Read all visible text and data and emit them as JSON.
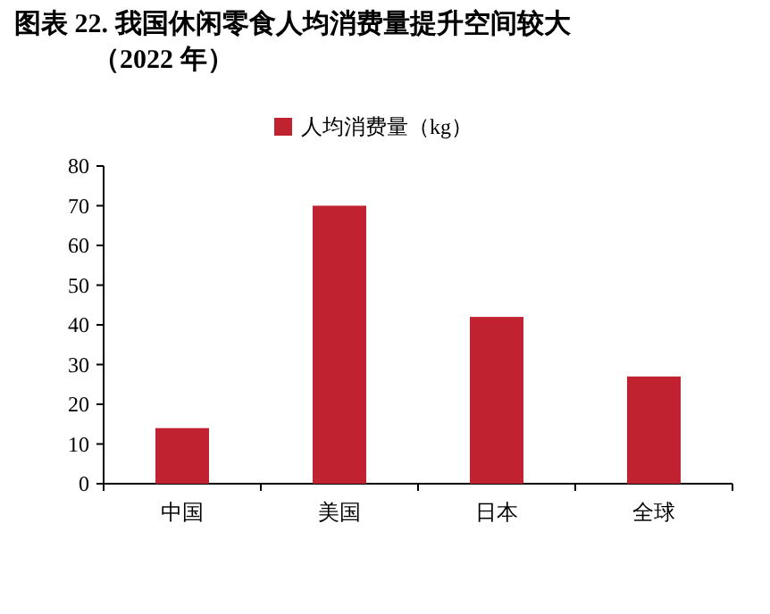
{
  "chart_data": {
    "type": "bar",
    "title": "图表 22. 我国休闲零食人均消费量提升空间较大（2022 年）",
    "categories": [
      "中国",
      "美国",
      "日本",
      "全球"
    ],
    "series": [
      {
        "name": "人均消费量（kg）",
        "color": "#c0232f",
        "values": [
          14,
          70,
          42,
          27
        ]
      }
    ],
    "ylim": [
      0,
      80
    ],
    "yticks": [
      0,
      10,
      20,
      30,
      40,
      50,
      60,
      70,
      80
    ],
    "grid": false,
    "legend": "top"
  }
}
